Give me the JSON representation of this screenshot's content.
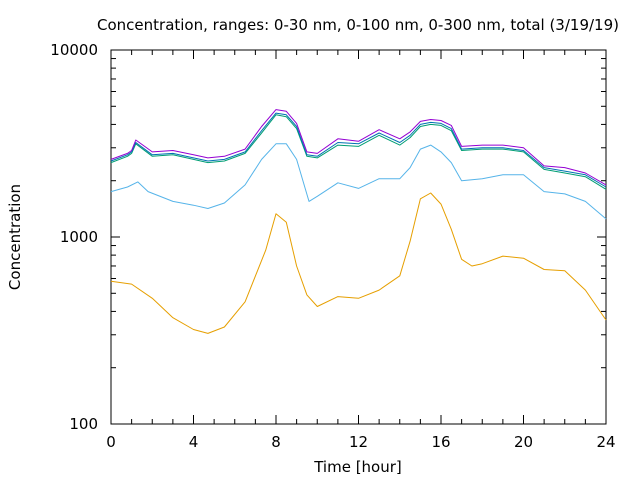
{
  "chart_data": {
    "type": "line",
    "title": "Concentration, ranges: 0-30 nm, 0-100 nm, 0-300 nm, total (3/19/19)",
    "xlabel": "Time [hour]",
    "ylabel": "Concentration",
    "xlim": [
      0,
      24
    ],
    "ylim": [
      100,
      10000
    ],
    "yscale": "log",
    "grid": false,
    "legend": "none",
    "x_ticks": [
      0,
      4,
      8,
      12,
      16,
      20,
      24
    ],
    "x_tick_labels": [
      "0",
      "4",
      "8",
      "12",
      "16",
      "20",
      "24"
    ],
    "y_ticks": [
      100,
      1000,
      10000
    ],
    "y_tick_labels": [
      "100",
      "1000",
      "10000"
    ],
    "series": [
      {
        "color": "#e69f00",
        "x": [
          0,
          1,
          2,
          3,
          4,
          4.7,
          5.5,
          6.5,
          7.5,
          8,
          8.5,
          9,
          9.5,
          10,
          11,
          12,
          13,
          14,
          14.5,
          15,
          15.5,
          16,
          16.5,
          17,
          17.5,
          18,
          19,
          20,
          21,
          22,
          23,
          24
        ],
        "y": [
          580,
          560,
          470,
          370,
          320,
          305,
          330,
          450,
          850,
          1330,
          1200,
          700,
          490,
          425,
          480,
          470,
          520,
          620,
          950,
          1600,
          1720,
          1500,
          1100,
          760,
          700,
          720,
          790,
          770,
          670,
          660,
          520,
          360
        ]
      },
      {
        "color": "#56b4e9",
        "x": [
          0,
          0.8,
          1.3,
          1.8,
          3,
          4,
          4.7,
          5.5,
          6.5,
          7.3,
          8,
          8.5,
          9,
          9.6,
          10,
          11,
          12,
          13,
          14,
          14.5,
          15,
          15.5,
          16,
          16.5,
          17,
          18,
          19,
          20,
          21,
          22,
          23,
          24
        ],
        "y": [
          1750,
          1850,
          1970,
          1750,
          1550,
          1480,
          1420,
          1520,
          1900,
          2600,
          3150,
          3150,
          2600,
          1550,
          1650,
          1950,
          1820,
          2050,
          2050,
          2350,
          2950,
          3100,
          2850,
          2500,
          2000,
          2050,
          2150,
          2150,
          1750,
          1700,
          1550,
          1250
        ]
      },
      {
        "color": "#009e73",
        "x": [
          0,
          0.8,
          1,
          1.2,
          2,
          3,
          4,
          4.7,
          5.5,
          6.5,
          7.3,
          8,
          8.5,
          9,
          9.5,
          10,
          11,
          12,
          13,
          14,
          14.5,
          15,
          15.5,
          16,
          16.5,
          17,
          18,
          19,
          20,
          21,
          22,
          23,
          24
        ],
        "y": [
          2500,
          2700,
          2800,
          3150,
          2700,
          2750,
          2600,
          2500,
          2550,
          2800,
          3600,
          4500,
          4400,
          3800,
          2700,
          2650,
          3100,
          3050,
          3500,
          3100,
          3400,
          3900,
          4000,
          3950,
          3700,
          2900,
          2950,
          2950,
          2850,
          2300,
          2200,
          2100,
          1800
        ]
      },
      {
        "color": "#0072b2",
        "x": [
          0,
          0.8,
          1,
          1.2,
          2,
          3,
          4,
          4.7,
          5.5,
          6.5,
          7.3,
          8,
          8.5,
          9,
          9.5,
          10,
          11,
          12,
          13,
          14,
          14.5,
          15,
          15.5,
          16,
          16.5,
          17,
          18,
          19,
          20,
          21,
          22,
          23,
          24
        ],
        "y": [
          2550,
          2750,
          2850,
          3200,
          2750,
          2800,
          2650,
          2550,
          2600,
          2850,
          3700,
          4600,
          4500,
          3900,
          2750,
          2700,
          3200,
          3150,
          3600,
          3200,
          3500,
          4000,
          4100,
          4050,
          3800,
          2950,
          3000,
          3000,
          2900,
          2350,
          2250,
          2150,
          1850
        ]
      },
      {
        "color": "#9400d3",
        "x": [
          0,
          0.8,
          1,
          1.2,
          2,
          3,
          4,
          4.7,
          5.5,
          6.5,
          7.3,
          8,
          8.5,
          9,
          9.5,
          10,
          11,
          12,
          13,
          14,
          14.5,
          15,
          15.5,
          16,
          16.5,
          17,
          18,
          19,
          20,
          21,
          22,
          23,
          24
        ],
        "y": [
          2600,
          2800,
          2900,
          3300,
          2850,
          2900,
          2750,
          2650,
          2700,
          2950,
          3900,
          4800,
          4700,
          4050,
          2850,
          2800,
          3350,
          3250,
          3750,
          3350,
          3650,
          4150,
          4250,
          4200,
          3950,
          3050,
          3100,
          3100,
          3000,
          2400,
          2350,
          2200,
          1900
        ]
      }
    ]
  }
}
